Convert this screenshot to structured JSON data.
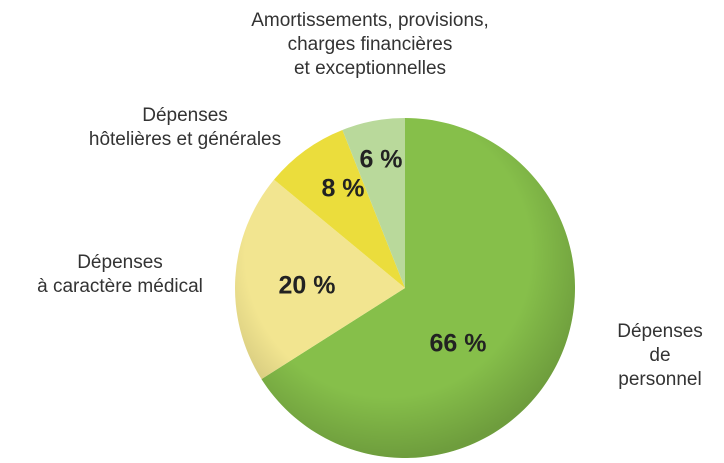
{
  "chart_data": {
    "type": "pie",
    "categories": [
      "Dépenses\nde personnel",
      "Dépenses\nà caractère médical",
      "Dépenses\nhôtelières et générales",
      "Amortissements, provisions,\ncharges financières\net exceptionnelles"
    ],
    "values": [
      66,
      20,
      8,
      6
    ],
    "value_labels": [
      "66 %",
      "20 %",
      "8 %",
      "6 %"
    ],
    "colors": [
      "#86bf4a",
      "#f2e590",
      "#ebdd3c",
      "#b9d99b"
    ]
  }
}
